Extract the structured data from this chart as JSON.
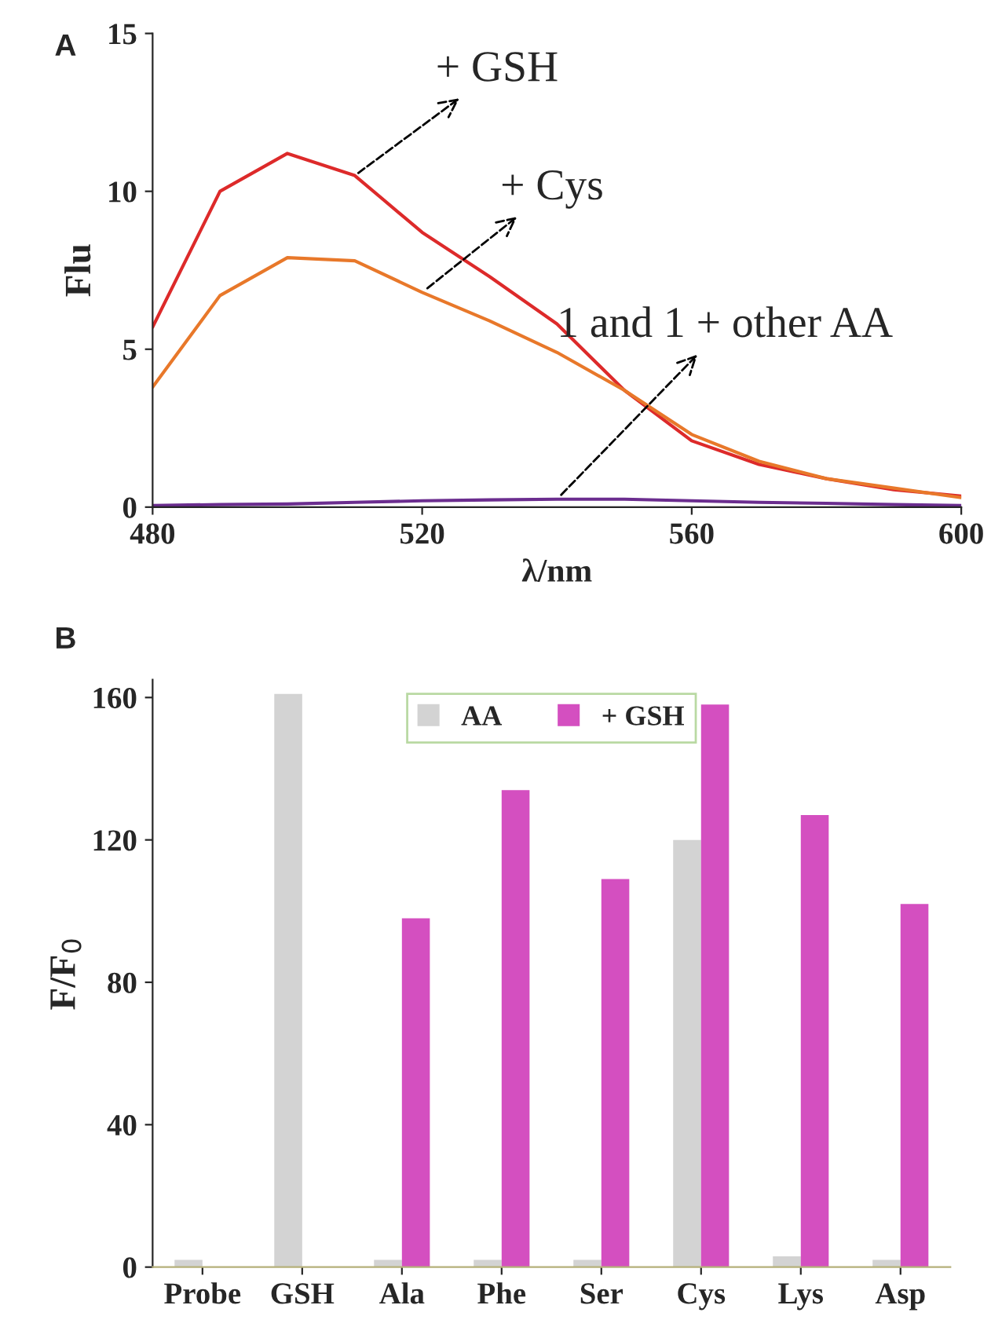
{
  "chart_data": [
    {
      "type": "line",
      "xlabel": "λ/nm",
      "ylabel": "Flu",
      "annotations": [
        "A"
      ],
      "x": [
        480,
        490,
        500,
        510,
        520,
        530,
        540,
        550,
        560,
        570,
        580,
        590,
        600
      ],
      "xlim": [
        480,
        600
      ],
      "xticks": [
        480,
        520,
        560,
        600
      ],
      "ylim": [
        0,
        15
      ],
      "yticks": [
        0,
        5,
        10,
        15
      ],
      "grid": false,
      "legend": false,
      "marker": "none",
      "line_style": "solid",
      "series": [
        {
          "name": "+ GSH",
          "color": "#dd2a2a",
          "values": [
            5.7,
            10.0,
            11.2,
            10.5,
            8.7,
            7.3,
            5.8,
            3.7,
            2.1,
            1.35,
            0.9,
            0.55,
            0.35
          ]
        },
        {
          "name": "+ Cys",
          "color": "#e8782a",
          "values": [
            3.8,
            6.7,
            7.9,
            7.8,
            6.8,
            5.9,
            4.9,
            3.7,
            2.3,
            1.45,
            0.9,
            0.6,
            0.3
          ]
        },
        {
          "name": "1 and 1 + other AA",
          "color": "#6b2d8f",
          "values": [
            0.05,
            0.08,
            0.1,
            0.15,
            0.2,
            0.23,
            0.25,
            0.25,
            0.2,
            0.15,
            0.12,
            0.08,
            0.05
          ]
        }
      ]
    },
    {
      "type": "bar",
      "ylabel": "F/F$_{0}$",
      "annotations": [
        "B"
      ],
      "categories": [
        "Probe",
        "GSH",
        "Ala",
        "Phe",
        "Ser",
        "Cys",
        "Lys",
        "Asp"
      ],
      "ylim": [
        0,
        165
      ],
      "yticks": [
        0,
        40,
        80,
        120,
        160
      ],
      "grid": false,
      "legend": "top",
      "series": [
        {
          "name": "AA",
          "color": "#d3d3d3",
          "values": [
            2,
            161,
            2,
            2,
            2,
            120,
            3,
            2
          ]
        },
        {
          "name": "+ GSH",
          "color": "#d44fc0",
          "values": [
            null,
            null,
            98,
            134,
            109,
            158,
            127,
            102
          ]
        }
      ]
    }
  ]
}
